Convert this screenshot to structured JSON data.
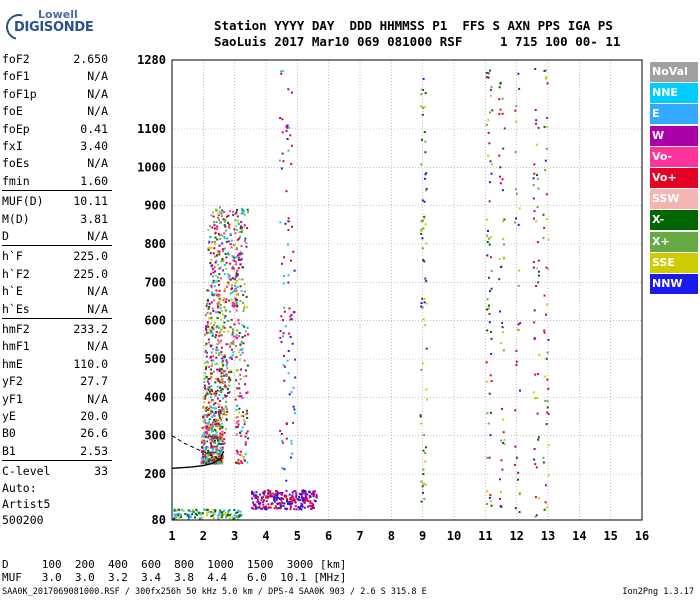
{
  "logo": {
    "line1": "Lowell",
    "line2": "DIGISONDE"
  },
  "header": {
    "line1": "Station YYYY DAY  DDD HHMMSS P1  FFS S AXN PPS IGA PS",
    "line2": "SaoLuis 2017 Mar10 069 081000 RSF     1 715 100 00- 11"
  },
  "params": [
    {
      "key": "foF2",
      "value": "2.650"
    },
    {
      "key": "foF1",
      "value": "N/A"
    },
    {
      "key": "foF1p",
      "value": "N/A"
    },
    {
      "key": "foE",
      "value": "N/A"
    },
    {
      "key": "foEp",
      "value": "0.41"
    },
    {
      "key": "fxI",
      "value": "3.40"
    },
    {
      "key": "foEs",
      "value": "N/A"
    },
    {
      "key": "fmin",
      "value": "1.60"
    },
    {
      "key": "MUF(D)",
      "value": "10.11"
    },
    {
      "key": "M(D)",
      "value": "3.81"
    },
    {
      "key": "D",
      "value": "N/A"
    },
    {
      "key": "h`F",
      "value": "225.0"
    },
    {
      "key": "h`F2",
      "value": "225.0"
    },
    {
      "key": "h`E",
      "value": "N/A"
    },
    {
      "key": "h`Es",
      "value": "N/A"
    },
    {
      "key": "hmF2",
      "value": "233.2"
    },
    {
      "key": "hmF1",
      "value": "N/A"
    },
    {
      "key": "hmE",
      "value": "110.0"
    },
    {
      "key": "yF2",
      "value": "27.7"
    },
    {
      "key": "yF1",
      "value": "N/A"
    },
    {
      "key": "yE",
      "value": "20.0"
    },
    {
      "key": "B0",
      "value": "26.6"
    },
    {
      "key": "B1",
      "value": "2.53"
    },
    {
      "key": "C-level",
      "value": "33"
    }
  ],
  "autoscaling": {
    "line1": "Auto:",
    "line2": "Artist5",
    "line3": "500200"
  },
  "legend": [
    {
      "label": "NoVal",
      "color": "#a0a0a0",
      "text": "#ffffff"
    },
    {
      "label": "NNE",
      "color": "#00ccff",
      "text": "#ffffff"
    },
    {
      "label": "E",
      "color": "#33aaff",
      "text": "#ffffff"
    },
    {
      "label": "W",
      "color": "#aa00aa",
      "text": "#ffffff"
    },
    {
      "label": "Vo-",
      "color": "#ff3399",
      "text": "#ffffff"
    },
    {
      "label": "Vo+",
      "color": "#e60026",
      "text": "#ffffff"
    },
    {
      "label": "SSW",
      "color": "#f4b4b4",
      "text": "#ffffff"
    },
    {
      "label": "X-",
      "color": "#006600",
      "text": "#ffffff"
    },
    {
      "label": "X+",
      "color": "#66aa44",
      "text": "#ffffff"
    },
    {
      "label": "SSE",
      "color": "#cccc00",
      "text": "#ffffff"
    },
    {
      "label": "NNW",
      "color": "#1a1aee",
      "text": "#ffffff"
    }
  ],
  "freq_table": {
    "line1": "D     100  200  400  600  800  1000  1500  3000 [km]",
    "line2": "MUF   3.0  3.0  3.2  3.4  3.8  4.4   6.0  10.1 [MHz]"
  },
  "footer": "SAA0K_2017069081000.RSF / 300fx256h 50 kHz 5.0 km / DPS-4 SAA0K 903 / 2.6 S 315.8 E",
  "version": "Ion2Png 1.3.17",
  "chart_data": {
    "type": "scatter",
    "title": "",
    "xlabel": "",
    "ylabel": "",
    "xlim": [
      1,
      16
    ],
    "ylim": [
      80,
      1280
    ],
    "xticks": [
      1,
      2,
      3,
      4,
      5,
      6,
      7,
      8,
      9,
      10,
      11,
      12,
      13,
      14,
      15,
      16
    ],
    "yticks": [
      80,
      200,
      300,
      400,
      500,
      600,
      700,
      800,
      900,
      1000,
      1100,
      1280
    ],
    "grid": true,
    "legend_position": "right",
    "clusters": [
      {
        "name": "F-layer o-trace",
        "x": [
          1.9,
          3.3
        ],
        "y": [
          230,
          900
        ],
        "colors": [
          "#e60026",
          "#ff3399",
          "#00ccff",
          "#66aa44",
          "#cccc00",
          "#aa00aa",
          "#006600"
        ]
      },
      {
        "name": "E/Es echoes",
        "x": [
          3.5,
          5.6
        ],
        "y": [
          110,
          160
        ],
        "colors": [
          "#1a1aee",
          "#aa00aa",
          "#e60026"
        ]
      },
      {
        "name": "Low echoes",
        "x": [
          1.0,
          3.2
        ],
        "y": [
          85,
          110
        ],
        "colors": [
          "#33aaff",
          "#006600",
          "#cccc00"
        ]
      },
      {
        "name": "Column 4.5",
        "x": [
          4.4,
          4.9
        ],
        "y": [
          180,
          1260
        ],
        "colors": [
          "#00ccff",
          "#33aaff",
          "#e60026",
          "#aa00aa",
          "#1a1aee"
        ]
      },
      {
        "name": "Column 9",
        "x": [
          8.9,
          9.1
        ],
        "y": [
          100,
          1250
        ],
        "colors": [
          "#006600",
          "#cccc00",
          "#66aa44",
          "#1a1aee"
        ]
      },
      {
        "name": "Column 11-13",
        "x": [
          11.0,
          13.0
        ],
        "y": [
          90,
          1260
        ],
        "colors": [
          "#006600",
          "#66aa44",
          "#cccc00",
          "#1a1aee",
          "#aa00aa",
          "#e60026"
        ]
      }
    ],
    "model_profile": {
      "name": "O-trace fit",
      "x": [
        1.0,
        1.6,
        2.0,
        2.3,
        2.55,
        2.65
      ],
      "y": [
        215,
        218,
        222,
        228,
        240,
        260
      ]
    },
    "extrapolated": {
      "name": "Extrapolation",
      "x": [
        1.0,
        1.4,
        1.8,
        2.2,
        2.6
      ],
      "y": [
        300,
        280,
        265,
        250,
        235
      ]
    }
  }
}
